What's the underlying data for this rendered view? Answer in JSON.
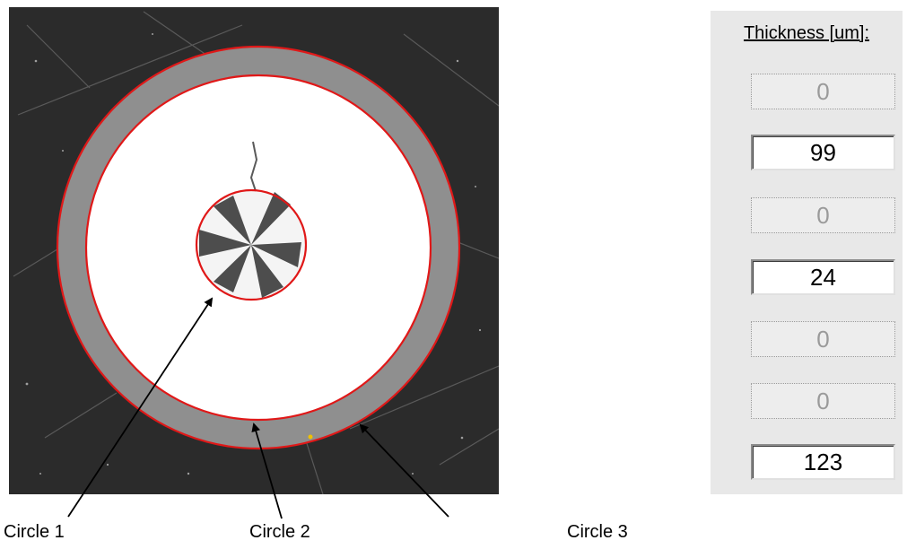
{
  "captions": [
    "Circle 1",
    "Circle 2",
    "Circle 3"
  ],
  "panel": {
    "title": "Thickness [um]:",
    "fields": [
      {
        "value": "0",
        "enabled": false
      },
      {
        "value": "99",
        "enabled": true
      },
      {
        "value": "0",
        "enabled": false
      },
      {
        "value": "24",
        "enabled": true
      },
      {
        "value": "0",
        "enabled": false
      },
      {
        "value": "0",
        "enabled": false
      },
      {
        "value": "123",
        "enabled": true
      }
    ]
  },
  "colors": {
    "circle_outline": "#e01818",
    "background": "#2b2b2b",
    "coating": "#8f8f8f",
    "core": "#ffffff",
    "panel": "#e8e8e8"
  }
}
